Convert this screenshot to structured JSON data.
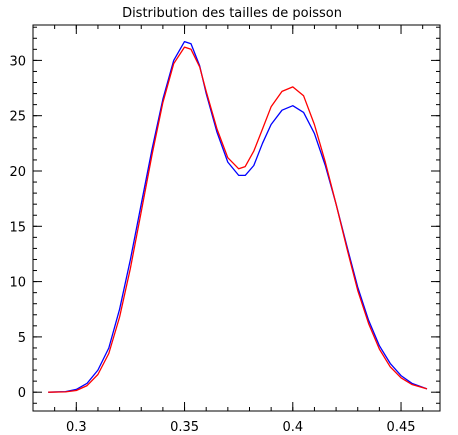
{
  "chart_data": {
    "type": "line",
    "title": "Distribution des tailles de poisson",
    "xlabel": "",
    "ylabel": "",
    "xlim": [
      0.28,
      0.468
    ],
    "ylim": [
      -1.7,
      33.2
    ],
    "xticks": [
      0.3,
      0.35,
      0.4,
      0.45
    ],
    "xtick_labels": [
      "0.3",
      "0.35",
      "0.4",
      "0.45"
    ],
    "xminor_step": 0.01,
    "yticks": [
      0,
      5,
      10,
      15,
      20,
      25,
      30
    ],
    "ytick_labels": [
      "0",
      "5",
      "10",
      "15",
      "20",
      "25",
      "30"
    ],
    "yminor_step": 1,
    "grid": false,
    "series": [
      {
        "color": "#0000ff",
        "points": [
          [
            0.287,
            0.0
          ],
          [
            0.295,
            0.05
          ],
          [
            0.3,
            0.25
          ],
          [
            0.305,
            0.8
          ],
          [
            0.31,
            2.0
          ],
          [
            0.315,
            4.0
          ],
          [
            0.32,
            7.5
          ],
          [
            0.325,
            12.0
          ],
          [
            0.33,
            17.0
          ],
          [
            0.335,
            22.0
          ],
          [
            0.34,
            26.5
          ],
          [
            0.345,
            30.0
          ],
          [
            0.35,
            31.7
          ],
          [
            0.353,
            31.5
          ],
          [
            0.357,
            29.5
          ],
          [
            0.36,
            27.0
          ],
          [
            0.365,
            23.5
          ],
          [
            0.37,
            20.8
          ],
          [
            0.375,
            19.6
          ],
          [
            0.378,
            19.6
          ],
          [
            0.382,
            20.5
          ],
          [
            0.386,
            22.5
          ],
          [
            0.39,
            24.2
          ],
          [
            0.395,
            25.5
          ],
          [
            0.4,
            25.9
          ],
          [
            0.405,
            25.3
          ],
          [
            0.41,
            23.4
          ],
          [
            0.415,
            20.5
          ],
          [
            0.42,
            17.0
          ],
          [
            0.425,
            13.2
          ],
          [
            0.43,
            9.5
          ],
          [
            0.435,
            6.5
          ],
          [
            0.44,
            4.2
          ],
          [
            0.445,
            2.6
          ],
          [
            0.45,
            1.5
          ],
          [
            0.455,
            0.8
          ],
          [
            0.462,
            0.3
          ]
        ]
      },
      {
        "color": "#ff0000",
        "points": [
          [
            0.287,
            0.0
          ],
          [
            0.295,
            0.03
          ],
          [
            0.3,
            0.15
          ],
          [
            0.305,
            0.6
          ],
          [
            0.31,
            1.6
          ],
          [
            0.315,
            3.5
          ],
          [
            0.32,
            6.8
          ],
          [
            0.325,
            11.2
          ],
          [
            0.33,
            16.3
          ],
          [
            0.335,
            21.5
          ],
          [
            0.34,
            26.2
          ],
          [
            0.345,
            29.7
          ],
          [
            0.35,
            31.2
          ],
          [
            0.353,
            31.0
          ],
          [
            0.357,
            29.4
          ],
          [
            0.36,
            27.2
          ],
          [
            0.365,
            23.8
          ],
          [
            0.37,
            21.2
          ],
          [
            0.375,
            20.2
          ],
          [
            0.378,
            20.4
          ],
          [
            0.382,
            21.8
          ],
          [
            0.386,
            23.8
          ],
          [
            0.39,
            25.8
          ],
          [
            0.395,
            27.2
          ],
          [
            0.4,
            27.6
          ],
          [
            0.405,
            26.8
          ],
          [
            0.41,
            24.2
          ],
          [
            0.415,
            20.8
          ],
          [
            0.42,
            17.0
          ],
          [
            0.425,
            13.0
          ],
          [
            0.43,
            9.2
          ],
          [
            0.435,
            6.2
          ],
          [
            0.44,
            3.9
          ],
          [
            0.445,
            2.3
          ],
          [
            0.45,
            1.3
          ],
          [
            0.455,
            0.7
          ],
          [
            0.462,
            0.3
          ]
        ]
      }
    ]
  }
}
